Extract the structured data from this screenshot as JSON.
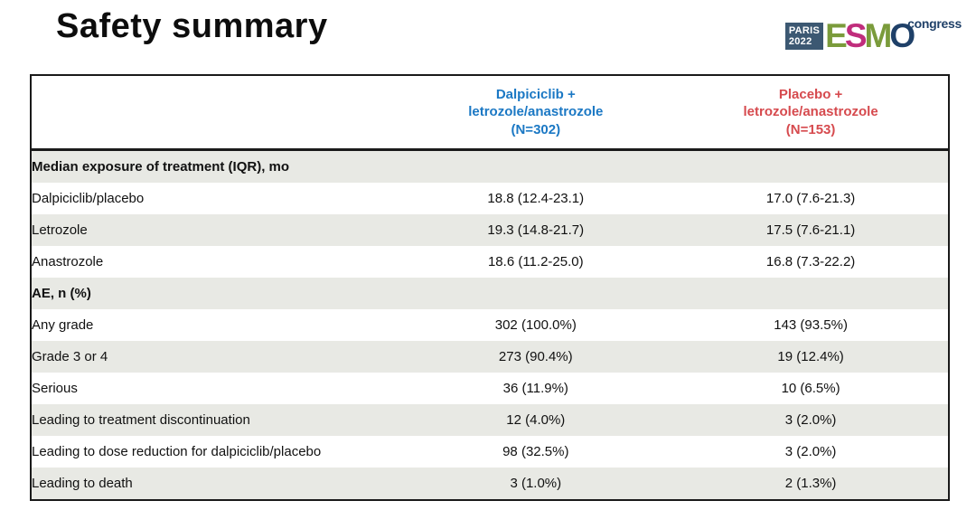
{
  "title": "Safety summary",
  "logo": {
    "venue": "PARIS",
    "year": "2022",
    "letters": [
      {
        "char": "E",
        "color": "#7a9b3b"
      },
      {
        "char": "S",
        "color": "#c02d7c"
      },
      {
        "char": "M",
        "color": "#7a9b3b"
      },
      {
        "char": "O",
        "color": "#1f4068"
      }
    ],
    "congress": "congress"
  },
  "colors": {
    "accent_blue": "#1b78c4",
    "accent_red": "#d64a4e",
    "stripe_gray": "#e8e9e4",
    "border_black": "#1a1a1a",
    "logo_box_navy": "#3c5872",
    "logo_navy": "#1f4068"
  },
  "table": {
    "columns": [
      {
        "id": "label",
        "lines": []
      },
      {
        "id": "dalpiciclib",
        "lines": [
          "Dalpiciclib +",
          "letrozole/anastrozole",
          "(N=302)"
        ]
      },
      {
        "id": "placebo",
        "lines": [
          "Placebo +",
          "letrozole/anastrozole",
          "(N=153)"
        ]
      }
    ],
    "rows": [
      {
        "type": "section",
        "label": "Median exposure of treatment (IQR), mo",
        "col1": "",
        "col2": ""
      },
      {
        "type": "data",
        "label": "Dalpiciclib/placebo",
        "col1": "18.8 (12.4-23.1)",
        "col2": "17.0 (7.6-21.3)"
      },
      {
        "type": "data",
        "label": "Letrozole",
        "col1": "19.3 (14.8-21.7)",
        "col2": "17.5 (7.6-21.1)"
      },
      {
        "type": "data",
        "label": "Anastrozole",
        "col1": "18.6 (11.2-25.0)",
        "col2": "16.8 (7.3-22.2)"
      },
      {
        "type": "section",
        "label": "AE, n (%)",
        "col1": "",
        "col2": ""
      },
      {
        "type": "data",
        "label": "Any grade",
        "col1": "302 (100.0%)",
        "col2": "143 (93.5%)"
      },
      {
        "type": "data",
        "label": "Grade 3 or 4",
        "col1": "273 (90.4%)",
        "col2": "19 (12.4%)"
      },
      {
        "type": "data",
        "label": "Serious",
        "col1": "36 (11.9%)",
        "col2": "10 (6.5%)"
      },
      {
        "type": "data",
        "label": "Leading to treatment discontinuation",
        "col1": "12 (4.0%)",
        "col2": "3 (2.0%)"
      },
      {
        "type": "data",
        "label": "Leading to dose reduction for dalpiciclib/placebo",
        "col1": "98 (32.5%)",
        "col2": "3 (2.0%)"
      },
      {
        "type": "data",
        "label": "Leading to death",
        "col1": "3 (1.0%)",
        "col2": "2 (1.3%)"
      }
    ]
  }
}
